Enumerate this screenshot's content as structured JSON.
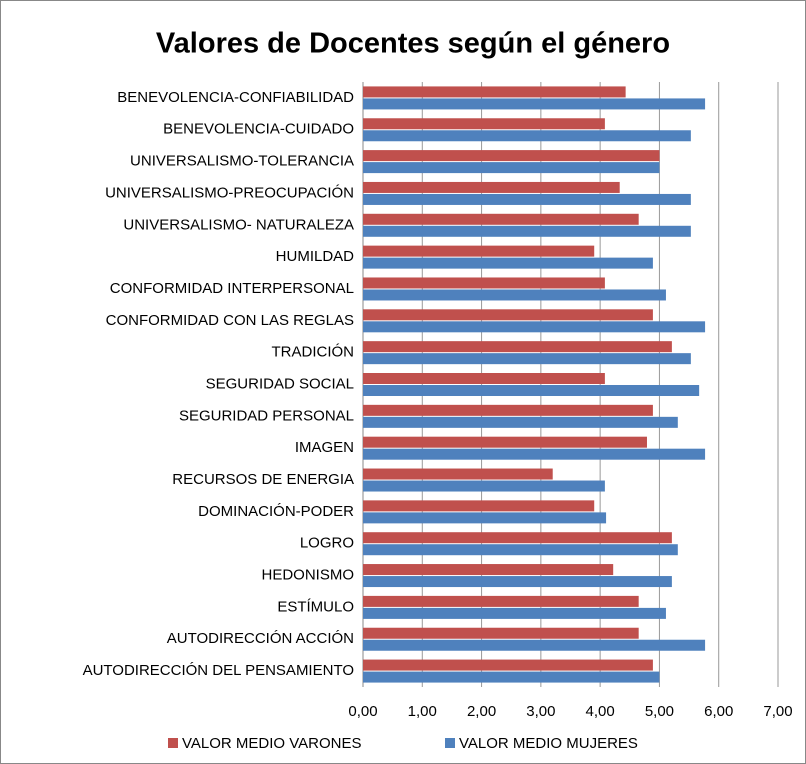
{
  "chart_data": {
    "type": "barh",
    "title": "Valores de Docentes según el género",
    "categories": [
      "BENEVOLENCIA-CONFIABILIDAD",
      "BENEVOLENCIA-CUIDADO",
      "UNIVERSALISMO-TOLERANCIA",
      "UNIVERSALISMO-PREOCUPACIÓN",
      "UNIVERSALISMO- NATURALEZA",
      "HUMILDAD",
      "CONFORMIDAD INTERPERSONAL",
      "CONFORMIDAD CON LAS REGLAS",
      "TRADICIÓN",
      "SEGURIDAD SOCIAL",
      "SEGURIDAD PERSONAL",
      "IMAGEN",
      "RECURSOS DE ENERGIA",
      "DOMINACIÓN-PODER",
      "LOGRO",
      "HEDONISMO",
      "ESTÍMULO",
      "AUTODIRECCIÓN ACCIÓN",
      "AUTODIRECCIÓN DEL PENSAMIENTO"
    ],
    "series": [
      {
        "name": "VALOR MEDIO VARONES",
        "color": "#c0504d",
        "values": [
          4.43,
          4.08,
          5.0,
          4.33,
          4.65,
          3.9,
          4.08,
          4.89,
          5.21,
          4.08,
          4.89,
          4.79,
          3.2,
          3.9,
          5.21,
          4.22,
          4.65,
          4.65,
          4.89
        ]
      },
      {
        "name": "VALOR MEDIO MUJERES",
        "color": "#4f81bd",
        "values": [
          5.77,
          5.53,
          5.0,
          5.53,
          5.53,
          4.89,
          5.11,
          5.77,
          5.53,
          5.67,
          5.31,
          5.77,
          4.08,
          4.1,
          5.31,
          5.21,
          5.11,
          5.77,
          5.0
        ]
      }
    ],
    "xlim": [
      0,
      7
    ],
    "xticks": [
      {
        "value": 0,
        "label": "0,00"
      },
      {
        "value": 1,
        "label": "1,00"
      },
      {
        "value": 2,
        "label": "2,00"
      },
      {
        "value": 3,
        "label": "3,00"
      },
      {
        "value": 4,
        "label": "4,00"
      },
      {
        "value": 5,
        "label": "5,00"
      },
      {
        "value": 6,
        "label": "6,00"
      },
      {
        "value": 7,
        "label": "7,00"
      }
    ],
    "grid": true,
    "legend": "bottom"
  }
}
